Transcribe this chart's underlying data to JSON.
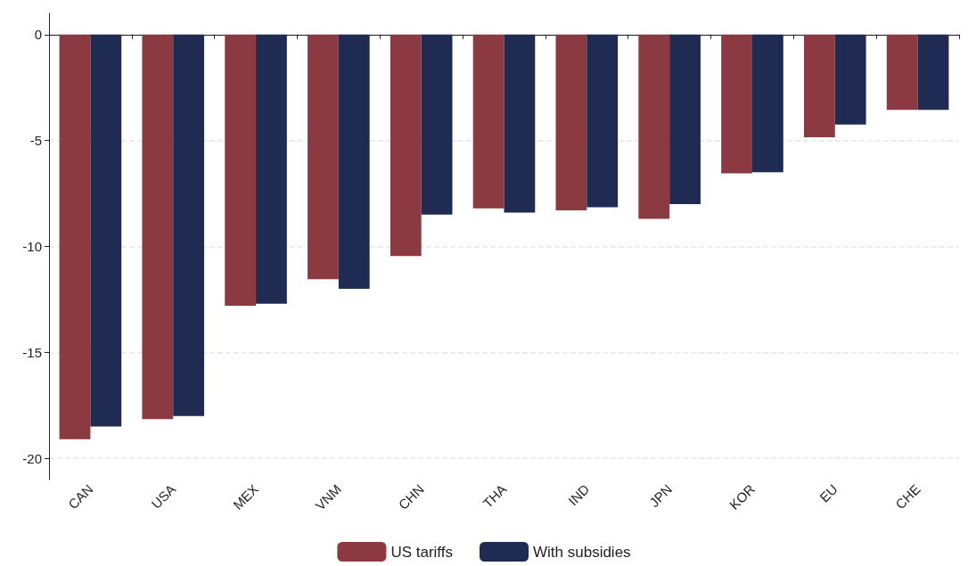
{
  "chart_data": {
    "type": "bar",
    "categories": [
      "CAN",
      "USA",
      "MEX",
      "VNM",
      "CHN",
      "THA",
      "IND",
      "JPN",
      "KOR",
      "EU",
      "CHE"
    ],
    "series": [
      {
        "name": "US tariffs",
        "color": "#8b3a41",
        "values": [
          -19.1,
          -18.15,
          -12.8,
          -11.55,
          -10.45,
          -8.2,
          -8.3,
          -8.7,
          -6.55,
          -4.85,
          -3.55
        ]
      },
      {
        "name": "With subsidies",
        "color": "#1f2b52",
        "values": [
          -18.5,
          -18.0,
          -12.7,
          -12.0,
          -8.5,
          -8.4,
          -8.15,
          -8.0,
          -6.5,
          -4.25,
          -3.55
        ]
      }
    ],
    "ylim": [
      -21,
      1
    ],
    "yticks": [
      -20,
      -15,
      -10,
      -5,
      0
    ],
    "grid": "y",
    "legend": "bottom"
  }
}
